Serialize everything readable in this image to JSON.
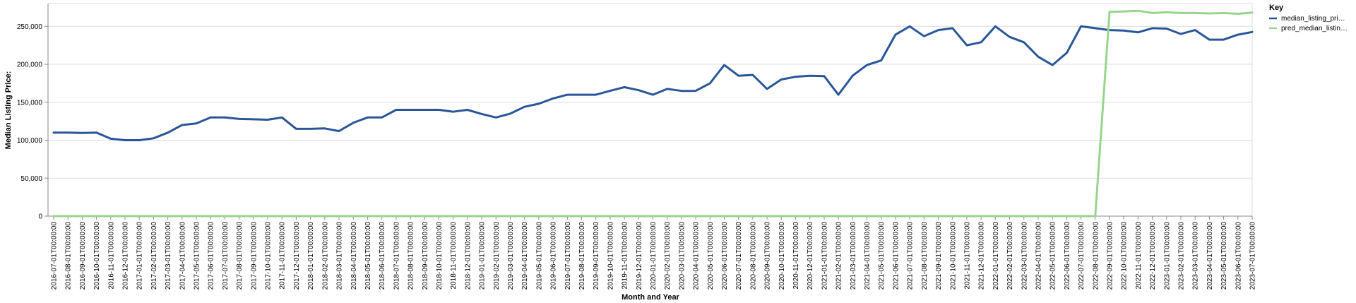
{
  "chart_data": {
    "type": "line",
    "xlabel": "Month and Year",
    "ylabel": "Median Listing Price:",
    "ylim": [
      0,
      280000
    ],
    "yticks": [
      0,
      50000,
      100000,
      150000,
      200000,
      250000
    ],
    "ytick_labels": [
      "0",
      "50,000",
      "100,000",
      "150,000",
      "200,000",
      "250,000"
    ],
    "grid": true,
    "legend": {
      "title": "Key",
      "placement": "top-right"
    },
    "x": [
      "2016-07-01T00:00:00",
      "2016-08-01T00:00:00",
      "2016-09-01T00:00:00",
      "2016-10-01T00:00:00",
      "2016-11-01T00:00:00",
      "2016-12-01T00:00:00",
      "2017-01-01T00:00:00",
      "2017-02-01T00:00:00",
      "2017-03-01T00:00:00",
      "2017-04-01T00:00:00",
      "2017-05-01T00:00:00",
      "2017-06-01T00:00:00",
      "2017-07-01T00:00:00",
      "2017-08-01T00:00:00",
      "2017-09-01T00:00:00",
      "2017-10-01T00:00:00",
      "2017-11-01T00:00:00",
      "2017-12-01T00:00:00",
      "2018-01-01T00:00:00",
      "2018-02-01T00:00:00",
      "2018-03-01T00:00:00",
      "2018-04-01T00:00:00",
      "2018-05-01T00:00:00",
      "2018-06-01T00:00:00",
      "2018-07-01T00:00:00",
      "2018-08-01T00:00:00",
      "2018-09-01T00:00:00",
      "2018-10-01T00:00:00",
      "2018-11-01T00:00:00",
      "2018-12-01T00:00:00",
      "2019-01-01T00:00:00",
      "2019-02-01T00:00:00",
      "2019-03-01T00:00:00",
      "2019-04-01T00:00:00",
      "2019-05-01T00:00:00",
      "2019-06-01T00:00:00",
      "2019-07-01T00:00:00",
      "2019-08-01T00:00:00",
      "2019-09-01T00:00:00",
      "2019-10-01T00:00:00",
      "2019-11-01T00:00:00",
      "2019-12-01T00:00:00",
      "2020-01-01T00:00:00",
      "2020-02-01T00:00:00",
      "2020-03-01T00:00:00",
      "2020-04-01T00:00:00",
      "2020-05-01T00:00:00",
      "2020-06-01T00:00:00",
      "2020-07-01T00:00:00",
      "2020-08-01T00:00:00",
      "2020-09-01T00:00:00",
      "2020-10-01T00:00:00",
      "2020-11-01T00:00:00",
      "2020-12-01T00:00:00",
      "2021-01-01T00:00:00",
      "2021-02-01T00:00:00",
      "2021-03-01T00:00:00",
      "2021-04-01T00:00:00",
      "2021-05-01T00:00:00",
      "2021-06-01T00:00:00",
      "2021-07-01T00:00:00",
      "2021-08-01T00:00:00",
      "2021-09-01T00:00:00",
      "2021-10-01T00:00:00",
      "2021-11-01T00:00:00",
      "2021-12-01T00:00:00",
      "2022-01-01T00:00:00",
      "2022-02-01T00:00:00",
      "2022-03-01T00:00:00",
      "2022-04-01T00:00:00",
      "2022-05-01T00:00:00",
      "2022-06-01T00:00:00",
      "2022-07-01T00:00:00",
      "2022-08-01T00:00:00",
      "2022-09-01T00:00:00",
      "2022-10-01T00:00:00",
      "2022-11-01T00:00:00",
      "2022-12-01T00:00:00",
      "2023-01-01T00:00:00",
      "2023-02-01T00:00:00",
      "2023-03-01T00:00:00",
      "2023-04-01T00:00:00",
      "2023-05-01T00:00:00",
      "2023-06-01T00:00:00",
      "2023-07-01T00:00:00"
    ],
    "series": [
      {
        "name": "median_listing_pri…",
        "color": "#2a5699",
        "values": [
          110000,
          110000,
          109500,
          110000,
          102000,
          100000,
          100000,
          102500,
          110000,
          120000,
          122000,
          130000,
          130000,
          128000,
          127500,
          127000,
          130000,
          115000,
          115000,
          115500,
          112000,
          123000,
          130000,
          130000,
          140000,
          140000,
          140000,
          140000,
          137500,
          140000,
          134500,
          130000,
          135000,
          144000,
          148000,
          155000,
          159900,
          159900,
          159900,
          165000,
          169900,
          165900,
          159900,
          167500,
          164900,
          165000,
          175000,
          199000,
          184900,
          186000,
          167500,
          180000,
          183500,
          184900,
          184500,
          159900,
          185000,
          199000,
          205000,
          239000,
          250000,
          237000,
          245000,
          247500,
          225000,
          229000,
          250000,
          236000,
          229000,
          210000,
          199000,
          215000,
          250000,
          247500,
          245000,
          244500,
          242000,
          247500,
          247000,
          239900,
          245000,
          232500,
          232500,
          239000,
          242500
        ]
      },
      {
        "name": "pred_median_listin…",
        "color": "#98d58c",
        "values": [
          0,
          0,
          0,
          0,
          0,
          0,
          0,
          0,
          0,
          0,
          0,
          0,
          0,
          0,
          0,
          0,
          0,
          0,
          0,
          0,
          0,
          0,
          0,
          0,
          0,
          0,
          0,
          0,
          0,
          0,
          0,
          0,
          0,
          0,
          0,
          0,
          0,
          0,
          0,
          0,
          0,
          0,
          0,
          0,
          0,
          0,
          0,
          0,
          0,
          0,
          0,
          0,
          0,
          0,
          0,
          0,
          0,
          0,
          0,
          0,
          0,
          0,
          0,
          0,
          0,
          0,
          0,
          0,
          0,
          0,
          0,
          0,
          0,
          0,
          269000,
          269500,
          270500,
          267500,
          268500,
          267500,
          267500,
          267000,
          267500,
          266500,
          268000
        ]
      }
    ]
  }
}
